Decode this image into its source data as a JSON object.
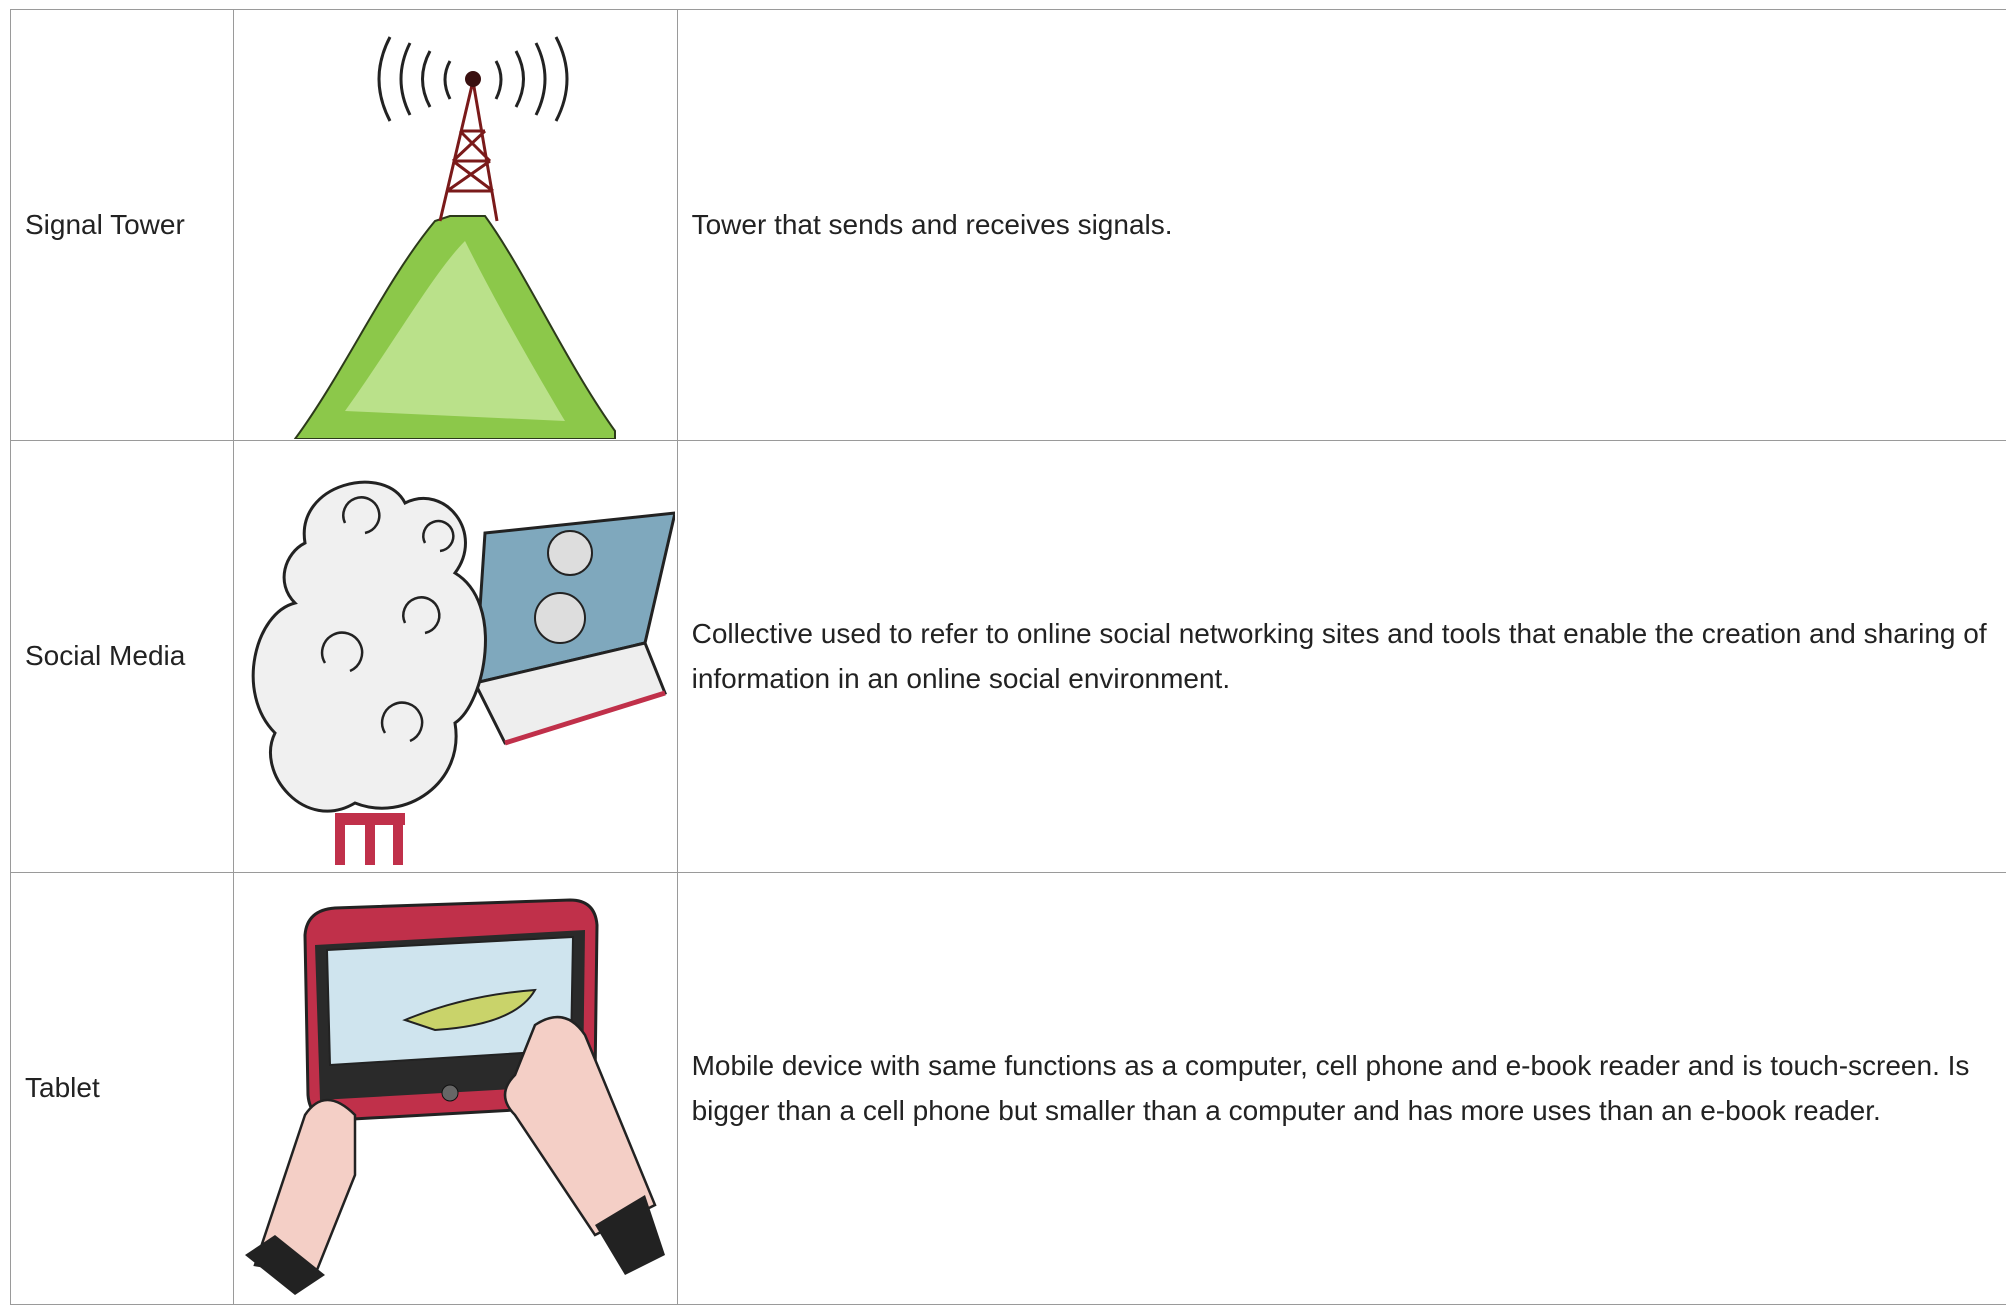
{
  "table": {
    "rows": [
      {
        "term": "Signal Tower",
        "definition": "Tower that sends and receives signals."
      },
      {
        "term": "Social Media",
        "definition": "Collective used to refer to online social networking sites and tools that enable the creation and sharing of information in an online social environment."
      },
      {
        "term": "Tablet",
        "definition": "Mobile device with same functions as a computer, cell phone and e-book reader and is touch-screen. Is bigger than a cell phone but smaller than a computer and has more uses than an e-book reader."
      }
    ]
  }
}
